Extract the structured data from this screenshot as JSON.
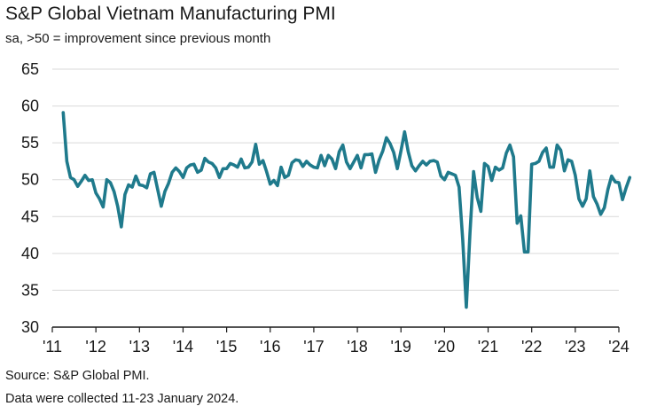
{
  "chart_data": {
    "type": "line",
    "title": "S&P Global Vietnam Manufacturing PMI",
    "subtitle": "sa, >50 = improvement since previous month",
    "xlabel": "",
    "ylabel": "",
    "ylim": [
      30,
      65
    ],
    "yticks": [
      30,
      35,
      40,
      45,
      50,
      55,
      60,
      65
    ],
    "xlim": [
      2011,
      2024
    ],
    "xticks": [
      {
        "value": 2011,
        "label": "'11"
      },
      {
        "value": 2012,
        "label": "'12"
      },
      {
        "value": 2013,
        "label": "'13"
      },
      {
        "value": 2014,
        "label": "'14"
      },
      {
        "value": 2015,
        "label": "'15"
      },
      {
        "value": 2016,
        "label": "'16"
      },
      {
        "value": 2017,
        "label": "'17"
      },
      {
        "value": 2018,
        "label": "'18"
      },
      {
        "value": 2019,
        "label": "'19"
      },
      {
        "value": 2020,
        "label": "'20"
      },
      {
        "value": 2021,
        "label": "'21"
      },
      {
        "value": 2022,
        "label": "'22"
      },
      {
        "value": 2023,
        "label": "'23"
      },
      {
        "value": 2024,
        "label": "'24"
      }
    ],
    "grid": "horizontal",
    "series": [
      {
        "name": "Vietnam Manufacturing PMI",
        "color": "#1f7a8c",
        "start": "2011-04",
        "values": [
          59.1,
          52.5,
          50.3,
          50.0,
          49.1,
          49.8,
          50.6,
          49.9,
          50.0,
          48.2,
          47.4,
          46.3,
          50.0,
          49.6,
          48.4,
          46.4,
          43.6,
          48.0,
          49.3,
          49.0,
          50.5,
          49.3,
          49.2,
          48.9,
          50.8,
          51.0,
          48.7,
          46.4,
          48.4,
          49.5,
          51.0,
          51.6,
          51.1,
          50.3,
          51.6,
          52.0,
          52.1,
          51.0,
          51.3,
          52.9,
          52.4,
          52.2,
          51.6,
          50.3,
          51.5,
          51.5,
          52.2,
          52.0,
          51.7,
          52.8,
          51.6,
          51.7,
          52.4,
          54.8,
          52.1,
          52.6,
          51.1,
          49.4,
          49.9,
          49.2,
          51.7,
          50.3,
          50.6,
          52.3,
          52.7,
          52.6,
          51.8,
          52.5,
          52.0,
          51.7,
          51.6,
          53.3,
          51.9,
          53.3,
          52.8,
          51.5,
          53.8,
          54.7,
          52.4,
          51.5,
          52.4,
          53.3,
          51.6,
          53.4,
          53.4,
          53.5,
          51.0,
          52.7,
          53.9,
          55.7,
          54.9,
          53.7,
          51.5,
          53.9,
          56.5,
          53.8,
          51.9,
          51.2,
          51.9,
          52.5,
          52.0,
          52.5,
          52.6,
          52.4,
          50.5,
          50.0,
          51.0,
          50.8,
          50.6,
          49.0,
          41.9,
          32.7,
          42.7,
          51.1,
          47.6,
          45.7,
          52.2,
          51.8,
          49.9,
          51.7,
          51.3,
          51.6,
          53.6,
          54.7,
          53.1,
          44.1,
          45.1,
          40.2,
          40.2,
          52.1,
          52.2,
          52.5,
          53.7,
          54.3,
          51.7,
          51.7,
          54.7,
          54.0,
          51.2,
          52.7,
          52.5,
          50.6,
          47.4,
          46.4,
          47.4,
          51.2,
          47.7,
          46.7,
          45.3,
          46.2,
          48.7,
          50.5,
          49.7,
          49.6,
          47.3,
          48.9,
          50.3
        ]
      }
    ]
  },
  "notes": {
    "source": "Source: S&P Global PMI.",
    "collection": "Data were collected 11-23 January 2024."
  }
}
